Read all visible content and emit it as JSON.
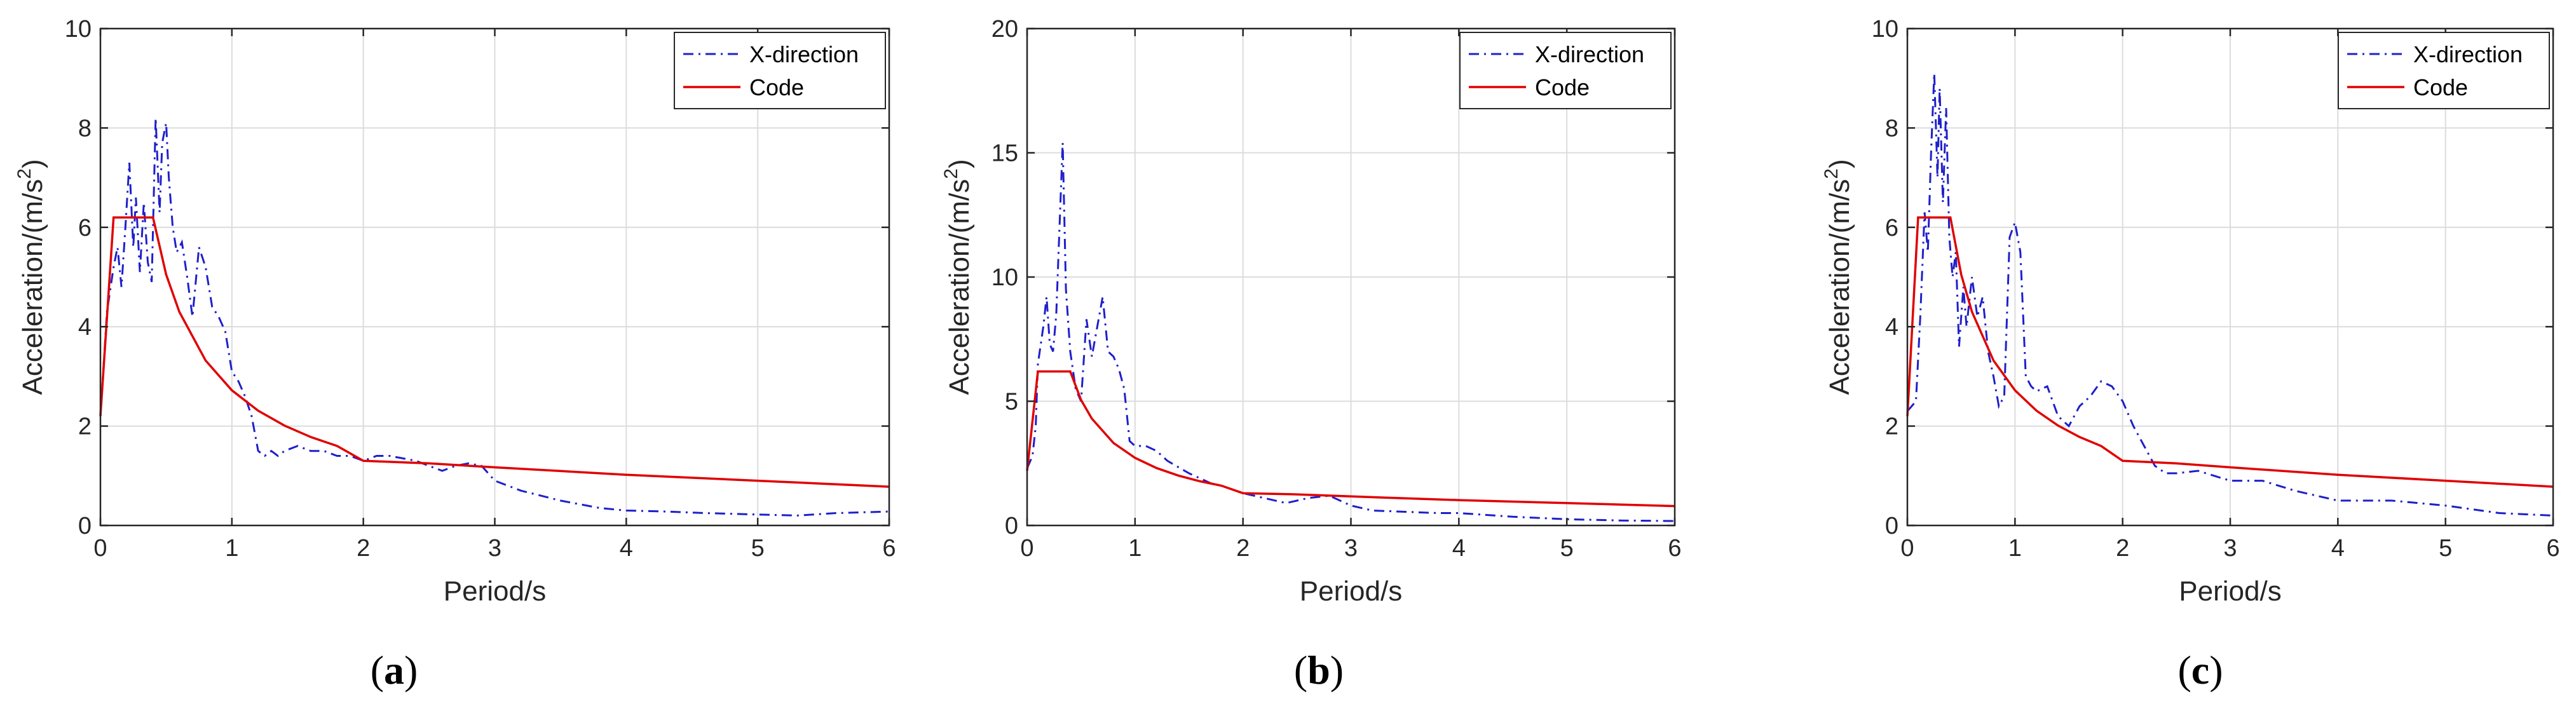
{
  "chart_data": [
    {
      "type": "line",
      "caption": "a",
      "xlabel": "Period/s",
      "ylabel": "Acceleration/(m/s²)",
      "ylabel_main": "Acceleration/(m/s",
      "ylabel_sup": "2",
      "ylabel_end": ")",
      "xlim": [
        0,
        6
      ],
      "ylim": [
        0,
        10
      ],
      "xticks": [
        0,
        1,
        2,
        3,
        4,
        5,
        6
      ],
      "yticks": [
        0,
        2,
        4,
        6,
        8,
        10
      ],
      "grid": true,
      "legend_position": "top-right",
      "series": [
        {
          "name": "X-direction",
          "style": "dash-dot",
          "color": "#1f1fcc",
          "x": [
            0,
            0.05,
            0.1,
            0.13,
            0.16,
            0.19,
            0.22,
            0.25,
            0.27,
            0.3,
            0.33,
            0.36,
            0.39,
            0.42,
            0.45,
            0.47,
            0.5,
            0.52,
            0.55,
            0.58,
            0.62,
            0.66,
            0.7,
            0.75,
            0.8,
            0.85,
            0.9,
            0.95,
            1.0,
            1.05,
            1.1,
            1.15,
            1.2,
            1.25,
            1.3,
            1.35,
            1.4,
            1.5,
            1.6,
            1.7,
            1.8,
            1.9,
            2.0,
            2.1,
            2.2,
            2.3,
            2.4,
            2.5,
            2.6,
            2.7,
            2.8,
            2.9,
            3.0,
            3.2,
            3.5,
            3.8,
            4.0,
            4.3,
            4.6,
            5.0,
            5.3,
            5.6,
            6.0
          ],
          "y": [
            2.2,
            4.3,
            5.2,
            5.6,
            4.8,
            6.0,
            7.3,
            5.6,
            6.6,
            5.1,
            6.5,
            5.3,
            4.9,
            8.2,
            6.3,
            7.7,
            8.1,
            7.0,
            6.0,
            5.5,
            5.7,
            5.0,
            4.2,
            5.6,
            5.2,
            4.4,
            4.2,
            3.9,
            3.1,
            2.9,
            2.6,
            2.2,
            1.5,
            1.4,
            1.5,
            1.4,
            1.5,
            1.6,
            1.5,
            1.5,
            1.4,
            1.4,
            1.3,
            1.4,
            1.4,
            1.35,
            1.3,
            1.2,
            1.1,
            1.2,
            1.25,
            1.2,
            0.9,
            0.7,
            0.5,
            0.35,
            0.3,
            0.28,
            0.25,
            0.22,
            0.2,
            0.25,
            0.28
          ]
        },
        {
          "name": "Code",
          "style": "solid",
          "color": "#e00000",
          "x": [
            0,
            0.1,
            0.4,
            0.5,
            0.6,
            0.8,
            1.0,
            1.2,
            1.4,
            1.6,
            1.8,
            2.0,
            2.5,
            3.0,
            4.0,
            5.0,
            6.0
          ],
          "y": [
            2.2,
            6.2,
            6.2,
            5.05,
            4.3,
            3.32,
            2.72,
            2.31,
            2.01,
            1.78,
            1.6,
            1.3,
            1.25,
            1.17,
            1.02,
            0.9,
            0.78
          ]
        }
      ]
    },
    {
      "type": "line",
      "caption": "b",
      "xlabel": "Period/s",
      "ylabel": "Acceleration/(m/s²)",
      "ylabel_main": "Acceleration/(m/s",
      "ylabel_sup": "2",
      "ylabel_end": ")",
      "xlim": [
        0,
        6
      ],
      "ylim": [
        0,
        20
      ],
      "xticks": [
        0,
        1,
        2,
        3,
        4,
        5,
        6
      ],
      "yticks": [
        0,
        5,
        10,
        15,
        20
      ],
      "grid": true,
      "legend_position": "top-right",
      "series": [
        {
          "name": "X-direction",
          "style": "dash-dot",
          "color": "#1f1fcc",
          "x": [
            0,
            0.05,
            0.08,
            0.1,
            0.15,
            0.18,
            0.21,
            0.24,
            0.27,
            0.3,
            0.33,
            0.36,
            0.4,
            0.45,
            0.5,
            0.55,
            0.6,
            0.65,
            0.7,
            0.75,
            0.8,
            0.85,
            0.9,
            0.95,
            1.0,
            1.1,
            1.2,
            1.3,
            1.5,
            1.7,
            1.8,
            2.0,
            2.2,
            2.4,
            2.6,
            2.8,
            3.0,
            3.2,
            3.5,
            3.8,
            4.0,
            4.5,
            5.0,
            5.5,
            6.0
          ],
          "y": [
            2.3,
            2.8,
            4.0,
            6.5,
            8.0,
            9.2,
            7.3,
            7.0,
            8.5,
            12.0,
            15.4,
            9.5,
            7.0,
            5.5,
            5.0,
            8.3,
            6.8,
            8.0,
            9.2,
            7.0,
            6.8,
            6.3,
            5.5,
            3.4,
            3.2,
            3.2,
            3.0,
            2.6,
            2.1,
            1.7,
            1.6,
            1.3,
            1.1,
            0.9,
            1.1,
            1.2,
            0.8,
            0.6,
            0.55,
            0.5,
            0.5,
            0.35,
            0.25,
            0.2,
            0.18
          ]
        },
        {
          "name": "Code",
          "style": "solid",
          "color": "#e00000",
          "x": [
            0,
            0.1,
            0.4,
            0.5,
            0.6,
            0.8,
            1.0,
            1.2,
            1.4,
            1.6,
            1.8,
            2.0,
            2.5,
            3.0,
            4.0,
            5.0,
            6.0
          ],
          "y": [
            2.2,
            6.2,
            6.2,
            5.05,
            4.3,
            3.32,
            2.72,
            2.31,
            2.01,
            1.78,
            1.6,
            1.3,
            1.25,
            1.17,
            1.02,
            0.9,
            0.78
          ]
        }
      ]
    },
    {
      "type": "line",
      "caption": "c",
      "xlabel": "Period/s",
      "ylabel": "Acceleration/(m/s²)",
      "ylabel_main": "Acceleration/(m/s",
      "ylabel_sup": "2",
      "ylabel_end": ")",
      "xlim": [
        0,
        6
      ],
      "ylim": [
        0,
        10
      ],
      "xticks": [
        0,
        1,
        2,
        3,
        4,
        5,
        6
      ],
      "yticks": [
        0,
        2,
        4,
        6,
        8,
        10
      ],
      "grid": true,
      "legend_position": "top-right",
      "series": [
        {
          "name": "X-direction",
          "style": "dash-dot",
          "color": "#1f1fcc",
          "x": [
            0,
            0.08,
            0.12,
            0.16,
            0.19,
            0.22,
            0.25,
            0.28,
            0.3,
            0.33,
            0.36,
            0.39,
            0.42,
            0.45,
            0.48,
            0.52,
            0.55,
            0.6,
            0.65,
            0.7,
            0.75,
            0.8,
            0.85,
            0.9,
            0.95,
            1.0,
            1.05,
            1.1,
            1.15,
            1.2,
            1.3,
            1.4,
            1.5,
            1.6,
            1.7,
            1.8,
            1.9,
            2.0,
            2.1,
            2.2,
            2.3,
            2.4,
            2.5,
            2.7,
            3.0,
            3.3,
            3.6,
            4.0,
            4.5,
            5.0,
            5.5,
            6.0
          ],
          "y": [
            2.3,
            2.5,
            4.2,
            6.3,
            5.5,
            7.5,
            9.1,
            7.0,
            8.8,
            6.5,
            8.4,
            5.8,
            5.0,
            5.5,
            3.6,
            4.8,
            4.0,
            5.0,
            4.2,
            4.6,
            3.5,
            3.0,
            2.4,
            2.6,
            5.8,
            6.1,
            5.5,
            3.0,
            2.8,
            2.7,
            2.8,
            2.2,
            2.0,
            2.4,
            2.6,
            2.9,
            2.8,
            2.5,
            2.0,
            1.6,
            1.2,
            1.05,
            1.05,
            1.1,
            0.9,
            0.9,
            0.7,
            0.5,
            0.5,
            0.4,
            0.25,
            0.2
          ]
        },
        {
          "name": "Code",
          "style": "solid",
          "color": "#e00000",
          "x": [
            0,
            0.1,
            0.4,
            0.5,
            0.6,
            0.8,
            1.0,
            1.2,
            1.4,
            1.6,
            1.8,
            2.0,
            2.5,
            3.0,
            4.0,
            5.0,
            6.0
          ],
          "y": [
            2.2,
            6.2,
            6.2,
            5.05,
            4.3,
            3.32,
            2.72,
            2.31,
            2.01,
            1.78,
            1.6,
            1.3,
            1.25,
            1.17,
            1.02,
            0.9,
            0.78
          ]
        }
      ]
    }
  ]
}
